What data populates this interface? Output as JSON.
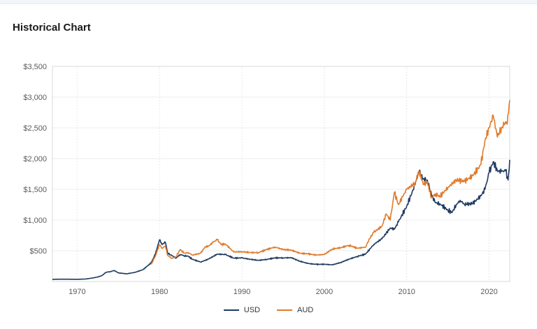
{
  "page": {
    "title": "Historical Chart"
  },
  "chart_data": {
    "type": "line",
    "title": "Historical Chart",
    "xlabel": "",
    "ylabel": "",
    "xlim": [
      1967,
      2022.5
    ],
    "ylim": [
      0,
      3500
    ],
    "yticks": [
      500,
      1000,
      1500,
      2000,
      2500,
      3000,
      3500
    ],
    "ytick_labels": [
      "$500",
      "$1,000",
      "$1,500",
      "$2,000",
      "$2,500",
      "$3,000",
      "$3,500"
    ],
    "xticks": [
      1970,
      1980,
      1990,
      2000,
      2010,
      2020
    ],
    "xtick_labels": [
      "1970",
      "1980",
      "1990",
      "2000",
      "2010",
      "2020"
    ],
    "grid": true,
    "legend_position": "bottom-center",
    "series": [
      {
        "name": "USD",
        "color": "#1f3a5f",
        "x": [
          1967,
          1968,
          1970,
          1971,
          1972,
          1972.5,
          1973,
          1973.5,
          1974,
          1974.5,
          1975,
          1976,
          1977,
          1978,
          1979,
          1979.5,
          1980,
          1980.3,
          1980.7,
          1981,
          1981.5,
          1982,
          1982.5,
          1983,
          1983.5,
          1984,
          1985,
          1986,
          1987,
          1988,
          1989,
          1990,
          1991,
          1992,
          1993,
          1994,
          1995,
          1996,
          1997,
          1998,
          1999,
          2000,
          2001,
          2002,
          2003,
          2004,
          2005,
          2006,
          2007,
          2008,
          2008.5,
          2009,
          2010,
          2011,
          2011.5,
          2012,
          2012.5,
          2013,
          2013.5,
          2014,
          2015,
          2015.5,
          2016,
          2016.5,
          2017,
          2018,
          2019,
          2019.5,
          2020,
          2020.5,
          2021,
          2021.5,
          2022,
          2022.3,
          2022.5
        ],
        "values": [
          35,
          38,
          36,
          40,
          60,
          75,
          95,
          150,
          160,
          180,
          140,
          125,
          148,
          193,
          306,
          450,
          680,
          600,
          640,
          460,
          420,
          380,
          440,
          420,
          410,
          360,
          317,
          368,
          446,
          437,
          381,
          383,
          362,
          343,
          360,
          384,
          384,
          388,
          331,
          294,
          279,
          280,
          272,
          310,
          363,
          409,
          445,
          604,
          696,
          872,
          850,
          972,
          1225,
          1572,
          1800,
          1669,
          1650,
          1411,
          1280,
          1266,
          1160,
          1120,
          1250,
          1320,
          1257,
          1268,
          1393,
          1500,
          1770,
          1950,
          1800,
          1790,
          1800,
          1650,
          1980
        ]
      },
      {
        "name": "AUD",
        "color": "#e07b2c",
        "x": [
          1979,
          1979.5,
          1980,
          1980.3,
          1980.7,
          1981,
          1981.5,
          1982,
          1982.5,
          1983,
          1983.5,
          1984,
          1985,
          1985.5,
          1986,
          1986.5,
          1987,
          1987.5,
          1988,
          1989,
          1990,
          1991,
          1992,
          1993,
          1994,
          1995,
          1996,
          1997,
          1998,
          1999,
          2000,
          2001,
          2002,
          2003,
          2004,
          2005,
          2005.5,
          2006,
          2007,
          2007.5,
          2008,
          2008.5,
          2009,
          2009.5,
          2010,
          2011,
          2011.5,
          2012,
          2012.5,
          2013,
          2013.5,
          2014,
          2015,
          2016,
          2017,
          2018,
          2019,
          2019.5,
          2020,
          2020.5,
          2021,
          2021.5,
          2022,
          2022.2,
          2022.5
        ],
        "values": [
          280,
          420,
          600,
          540,
          580,
          420,
          380,
          400,
          520,
          460,
          470,
          430,
          460,
          560,
          580,
          640,
          680,
          600,
          610,
          480,
          485,
          470,
          470,
          520,
          560,
          520,
          510,
          460,
          450,
          430,
          440,
          530,
          550,
          590,
          540,
          560,
          700,
          800,
          900,
          1100,
          1000,
          1450,
          1250,
          1380,
          1500,
          1600,
          1800,
          1580,
          1620,
          1360,
          1430,
          1380,
          1530,
          1650,
          1630,
          1720,
          1900,
          2300,
          2500,
          2700,
          2350,
          2500,
          2600,
          2560,
          2950
        ]
      }
    ]
  },
  "legend": [
    {
      "label": "USD",
      "color": "#1f3a5f"
    },
    {
      "label": "AUD",
      "color": "#e07b2c"
    }
  ]
}
